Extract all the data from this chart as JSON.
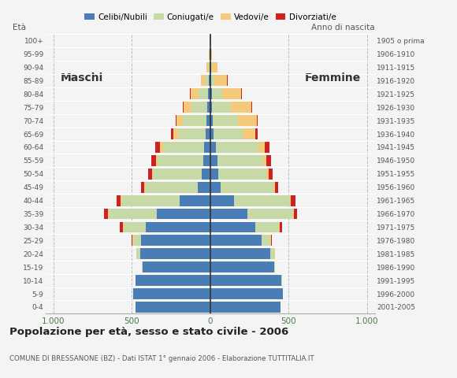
{
  "age_groups": [
    "0-4",
    "5-9",
    "10-14",
    "15-19",
    "20-24",
    "25-29",
    "30-34",
    "35-39",
    "40-44",
    "45-49",
    "50-54",
    "55-59",
    "60-64",
    "65-69",
    "70-74",
    "75-79",
    "80-84",
    "85-89",
    "90-94",
    "95-99",
    "100+"
  ],
  "birth_years": [
    "2001-2005",
    "1996-2000",
    "1991-1995",
    "1986-1990",
    "1981-1985",
    "1976-1980",
    "1971-1975",
    "1966-1970",
    "1961-1965",
    "1956-1960",
    "1951-1955",
    "1946-1950",
    "1941-1945",
    "1936-1940",
    "1931-1935",
    "1926-1930",
    "1921-1925",
    "1916-1920",
    "1911-1915",
    "1906-1910",
    "1905 o prima"
  ],
  "colors": {
    "celibe": "#4a7db5",
    "coniugato": "#c8d9a8",
    "vedovo": "#f5c97a",
    "divorziato": "#cc2222"
  },
  "males": {
    "celibe": [
      475,
      490,
      475,
      430,
      445,
      440,
      410,
      340,
      195,
      80,
      55,
      45,
      40,
      30,
      25,
      20,
      15,
      10,
      5,
      5,
      2
    ],
    "coniugato": [
      0,
      0,
      2,
      5,
      25,
      50,
      140,
      310,
      370,
      335,
      310,
      290,
      260,
      175,
      150,
      100,
      60,
      20,
      5,
      0,
      0
    ],
    "vedovo": [
      0,
      0,
      0,
      0,
      2,
      5,
      5,
      5,
      5,
      5,
      8,
      10,
      20,
      30,
      40,
      50,
      50,
      30,
      15,
      5,
      0
    ],
    "divorziato": [
      0,
      0,
      0,
      0,
      2,
      5,
      20,
      25,
      25,
      20,
      25,
      30,
      30,
      15,
      5,
      5,
      5,
      0,
      0,
      0,
      0
    ]
  },
  "females": {
    "nubile": [
      450,
      465,
      455,
      410,
      385,
      330,
      290,
      235,
      150,
      65,
      50,
      45,
      35,
      22,
      18,
      12,
      10,
      8,
      5,
      5,
      2
    ],
    "coniugata": [
      0,
      0,
      2,
      5,
      25,
      55,
      150,
      295,
      360,
      340,
      310,
      295,
      275,
      185,
      160,
      120,
      65,
      20,
      5,
      0,
      0
    ],
    "vedova": [
      0,
      0,
      0,
      0,
      2,
      5,
      5,
      5,
      5,
      8,
      12,
      20,
      40,
      80,
      120,
      130,
      120,
      80,
      35,
      5,
      0
    ],
    "divorziata": [
      0,
      0,
      0,
      0,
      2,
      5,
      15,
      20,
      30,
      20,
      25,
      30,
      30,
      15,
      5,
      5,
      5,
      5,
      0,
      0,
      0
    ]
  },
  "xlim": 1050,
  "title": "Popolazione per età, sesso e stato civile - 2006",
  "subtitle": "COMUNE DI BRESSANONE (BZ) - Dati ISTAT 1° gennaio 2006 - Elaborazione TUTTITALIA.IT",
  "ylabel_left": "Età",
  "ylabel_right": "Anno di nascita",
  "xtick_labels": [
    "1.000",
    "500",
    "0",
    "500",
    "1.000"
  ],
  "xtick_values": [
    -1000,
    -500,
    0,
    500,
    1000
  ],
  "label_maschi": "Maschi",
  "label_femmine": "Femmine",
  "legend_labels": [
    "Celibi/Nubili",
    "Coniugati/e",
    "Vedovi/e",
    "Divorziati/e"
  ],
  "background_color": "#f4f4f4"
}
